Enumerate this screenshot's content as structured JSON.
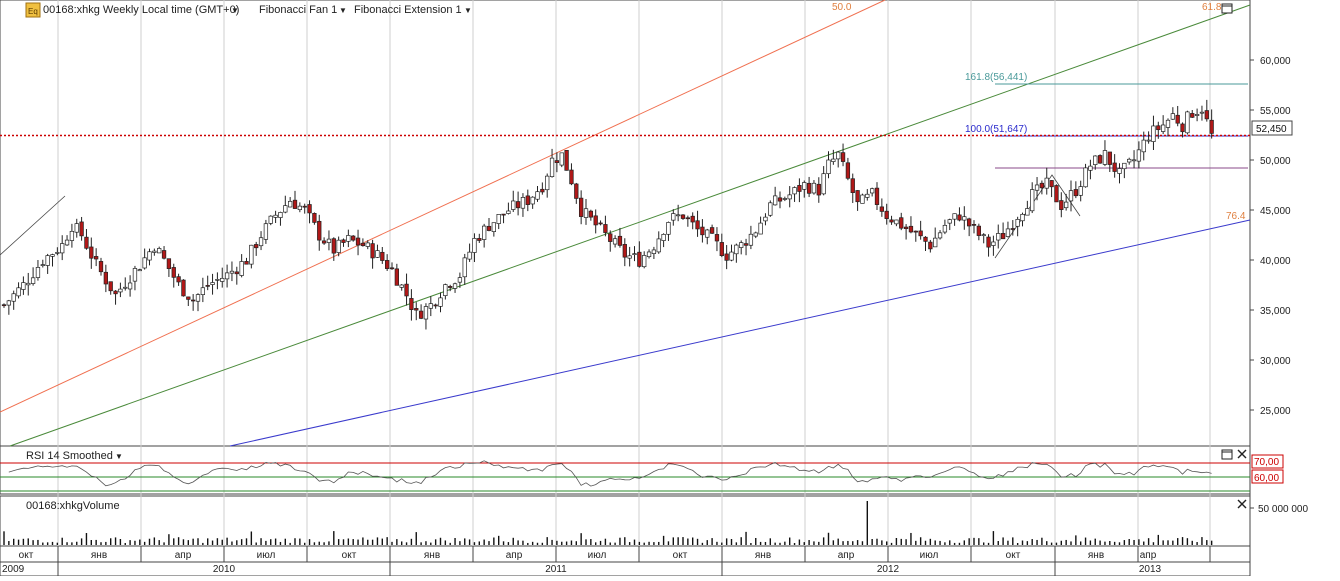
{
  "header": {
    "icon_label": "Eq",
    "symbol_title": "00168:xhkg Weekly Local time (GMT+0)",
    "study1": "Fibonacci Fan 1",
    "study2": "Fibonacci Extension 1"
  },
  "panels": {
    "rsi_title": "RSI 14 Smoothed",
    "volume_title": "00168:xhkgVolume",
    "rsi_levels": [
      "70,00",
      "60,00"
    ],
    "volume_tick": "50 000 000"
  },
  "colors": {
    "up_candle": "#ffffff",
    "down_candle": "#b01818",
    "price_line": "#cc0000",
    "fan_500": "#f07050",
    "fan_618": "#4a8a3a",
    "fan_764": "#3a3acc",
    "ext_1618": "#4a9a9a",
    "ext_1000": "#2a2acc",
    "ext_other": "#8a4a8a"
  },
  "chart_data": {
    "type": "candlestick",
    "ylim": [
      22000,
      64000
    ],
    "y_ticks": [
      "60,000",
      "55,000",
      "50,000",
      "45,000",
      "40,000",
      "35,000",
      "30,000",
      "25,000"
    ],
    "last_price": "52,450",
    "x_months": [
      "окт",
      "янв",
      "апр",
      "июл",
      "окт",
      "янв",
      "апр",
      "июл",
      "окт",
      "янв",
      "апр",
      "июл",
      "окт",
      "янв",
      "апр"
    ],
    "x_years": [
      "2009",
      "2010",
      "2011",
      "2012",
      "2013"
    ],
    "fan_labels": [
      "50.0",
      "61.8",
      "76.4"
    ],
    "extension_labels": [
      "161.8(56,441)",
      "100.0(51,647)"
    ],
    "close_path": [
      [
        0,
        35500
      ],
      [
        4,
        37500
      ],
      [
        8,
        40000
      ],
      [
        12,
        41500
      ],
      [
        14,
        43500
      ],
      [
        16,
        42500
      ],
      [
        19,
        39500
      ],
      [
        23,
        36500
      ],
      [
        25,
        37800
      ],
      [
        28,
        39500
      ],
      [
        31,
        41500
      ],
      [
        33,
        40000
      ],
      [
        36,
        37500
      ],
      [
        39,
        36000
      ],
      [
        42,
        37500
      ],
      [
        46,
        38500
      ],
      [
        50,
        40000
      ],
      [
        53,
        42500
      ],
      [
        56,
        44500
      ],
      [
        59,
        46000
      ],
      [
        62,
        45000
      ],
      [
        65,
        42500
      ],
      [
        68,
        41000
      ],
      [
        71,
        42000
      ],
      [
        74,
        41500
      ],
      [
        77,
        40500
      ],
      [
        80,
        39000
      ],
      [
        83,
        36500
      ],
      [
        85,
        34500
      ],
      [
        88,
        35500
      ],
      [
        91,
        37500
      ],
      [
        94,
        38500
      ],
      [
        97,
        42000
      ],
      [
        100,
        43500
      ],
      [
        104,
        45000
      ],
      [
        108,
        46000
      ],
      [
        111,
        47500
      ],
      [
        113,
        50000
      ],
      [
        115,
        50500
      ],
      [
        117,
        48000
      ],
      [
        119,
        45000
      ],
      [
        122,
        43500
      ],
      [
        125,
        42000
      ],
      [
        128,
        40500
      ],
      [
        131,
        40000
      ],
      [
        134,
        41500
      ],
      [
        137,
        44000
      ],
      [
        140,
        44500
      ],
      [
        143,
        43000
      ],
      [
        146,
        42000
      ],
      [
        149,
        40500
      ],
      [
        152,
        41500
      ],
      [
        155,
        43000
      ],
      [
        158,
        45500
      ],
      [
        162,
        46500
      ],
      [
        165,
        47500
      ],
      [
        168,
        47000
      ],
      [
        170,
        49500
      ],
      [
        172,
        50500
      ],
      [
        174,
        48000
      ],
      [
        176,
        45500
      ],
      [
        179,
        46500
      ],
      [
        182,
        44500
      ],
      [
        185,
        43500
      ],
      [
        188,
        42500
      ],
      [
        191,
        41500
      ],
      [
        194,
        43500
      ],
      [
        197,
        44500
      ],
      [
        200,
        43000
      ],
      [
        203,
        41500
      ],
      [
        206,
        42500
      ],
      [
        209,
        44500
      ],
      [
        212,
        46500
      ],
      [
        215,
        47500
      ],
      [
        218,
        45500
      ],
      [
        221,
        47000
      ],
      [
        224,
        49500
      ],
      [
        227,
        50500
      ],
      [
        230,
        48500
      ],
      [
        233,
        50000
      ],
      [
        236,
        52500
      ],
      [
        239,
        53500
      ],
      [
        241,
        54500
      ],
      [
        243,
        53500
      ],
      [
        245,
        54800
      ],
      [
        247,
        55200
      ],
      [
        249,
        52450
      ]
    ],
    "volume_spike": "week 178"
  }
}
